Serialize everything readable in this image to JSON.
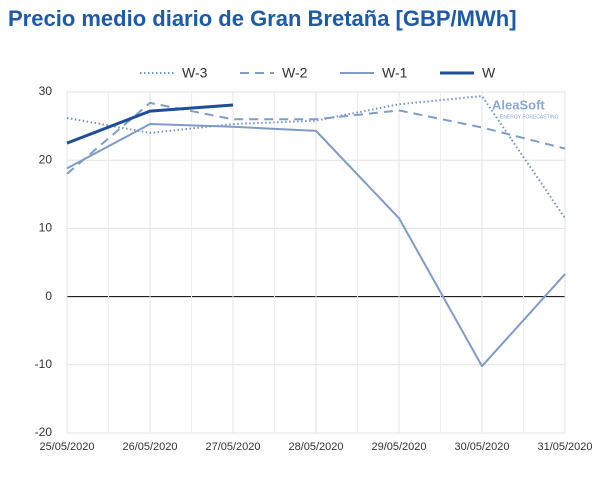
{
  "chart_data": {
    "type": "line",
    "title": "Precio medio diario de Gran Bretaña [GBP/MWh]",
    "watermark": "AleaSoft",
    "watermark_sub": "ENERGY FORECASTING",
    "categories": [
      "25/05/2020",
      "26/05/2020",
      "27/05/2020",
      "28/05/2020",
      "29/05/2020",
      "30/05/2020",
      "31/05/2020"
    ],
    "series": [
      {
        "name": "W-3",
        "color": "#7093c8",
        "style": "dotted",
        "values": [
          26.2,
          24.0,
          25.3,
          25.8,
          28.2,
          29.4,
          11.5
        ]
      },
      {
        "name": "W-2",
        "color": "#7f9ccb",
        "style": "dashed",
        "values": [
          18.0,
          28.4,
          26.0,
          26.0,
          27.3,
          24.8,
          21.7
        ]
      },
      {
        "name": "W-1",
        "color": "#7f9cc8",
        "style": "solid",
        "values": [
          18.8,
          25.3,
          24.9,
          24.3,
          11.5,
          -10.2,
          3.3
        ]
      },
      {
        "name": "W",
        "color": "#1f4e99",
        "style": "bold",
        "values": [
          22.5,
          27.2,
          28.1,
          null,
          null,
          null,
          null
        ]
      }
    ],
    "ylim": [
      -20,
      30
    ],
    "yticks": [
      -20,
      -10,
      0,
      10,
      20,
      30
    ],
    "grid": true,
    "legend": "top"
  }
}
